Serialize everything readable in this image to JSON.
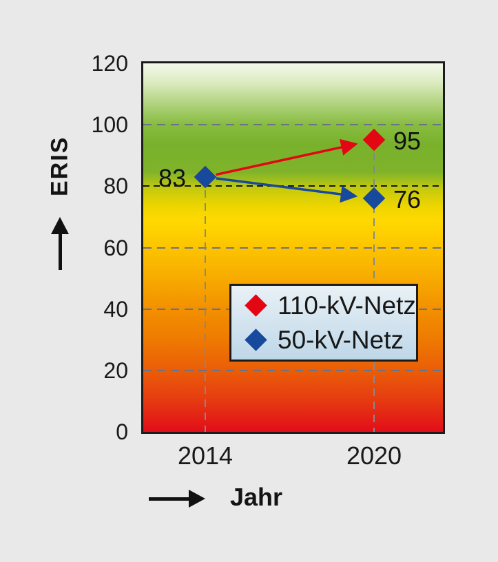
{
  "figure": {
    "background_color": "#e9e9e9",
    "plot_border_color": "#1c1c1c",
    "gridline_gray_color": "#6b7186",
    "threshold_line_color": "#161616",
    "drop_line_color": "#84898f"
  },
  "chart_data": {
    "type": "scatter",
    "title": "",
    "xlabel": "Jahr",
    "ylabel": "ERIS",
    "categories": [
      "2014",
      "2020"
    ],
    "ylim": [
      0,
      120
    ],
    "y_ticks": [
      0,
      20,
      40,
      60,
      80,
      100,
      120
    ],
    "grid": {
      "horizontal_dashed_gray": [
        20,
        40,
        60,
        100
      ],
      "threshold_dashed_black": 80,
      "vertical_drop_lines_at": [
        "2014",
        "2020"
      ]
    },
    "series": [
      {
        "name": "110-kV-Netz",
        "color": "#e30613",
        "marker": "diamond",
        "values": [
          83,
          95
        ],
        "point_labels": [
          null,
          "95"
        ],
        "label_sides": [
          null,
          "right"
        ],
        "arrow": true
      },
      {
        "name": "50-kV-Netz",
        "color": "#17499d",
        "marker": "diamond",
        "values": [
          83,
          76
        ],
        "point_labels": [
          "83",
          "76"
        ],
        "label_sides": [
          "left",
          "right"
        ],
        "arrow": true
      }
    ],
    "legend_position": "inside lower-right",
    "background_gradient_top_to_bottom": [
      "#f4f8ec",
      "#7ab22a",
      "#c3c90e",
      "#ffd900",
      "#f29000",
      "#e2071b"
    ],
    "annotations": "colored arrows point from the 2014 value to the 2020 value of each series"
  }
}
